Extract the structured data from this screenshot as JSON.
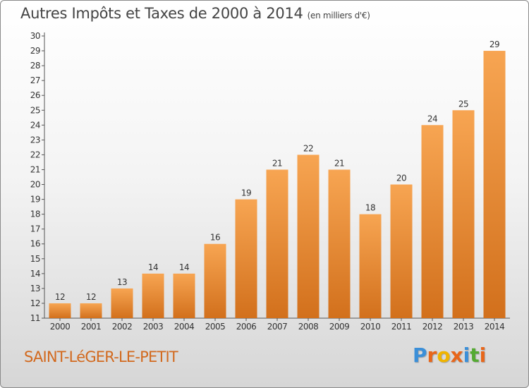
{
  "chart_data": {
    "type": "bar",
    "title": "Autres Impôts et Taxes de 2000 à 2014",
    "unit_label": "(en milliers d'€)",
    "categories": [
      "2000",
      "2001",
      "2002",
      "2003",
      "2004",
      "2005",
      "2006",
      "2007",
      "2008",
      "2009",
      "2010",
      "2011",
      "2012",
      "2013",
      "2014"
    ],
    "values": [
      12,
      12,
      13,
      14,
      14,
      16,
      19,
      21,
      22,
      21,
      18,
      20,
      24,
      25,
      29
    ],
    "ylim": [
      11,
      30
    ],
    "yticks": [
      11,
      12,
      13,
      14,
      15,
      16,
      17,
      18,
      19,
      20,
      21,
      22,
      23,
      24,
      25,
      26,
      27,
      28,
      29,
      30
    ],
    "grid": false,
    "bar_color_top": "#f7a552",
    "bar_color_bottom": "#d2701c"
  },
  "place_name": "SAINT-LéGER-LE-PETIT",
  "brand": {
    "text": "Proxiti",
    "letter_colors": [
      "#3b8fd8",
      "#e8661a",
      "#f0b400",
      "#e8661a",
      "#3b8fd8",
      "#55aa33",
      "#e8661a"
    ]
  }
}
